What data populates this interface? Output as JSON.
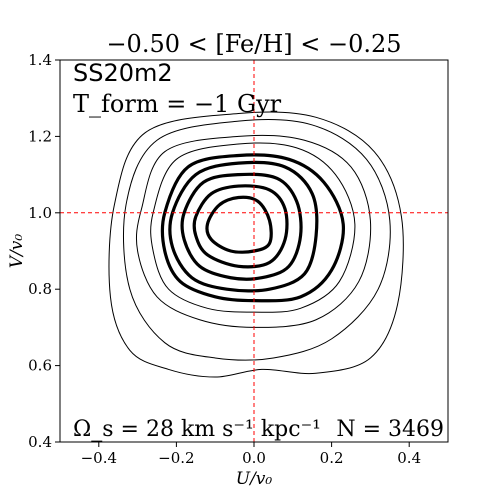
{
  "chart_data": {
    "type": "contour",
    "title": "−0.50 < [Fe/H] < −0.25",
    "xlabel": "U/v₀",
    "ylabel": "V/v₀",
    "xlim": [
      -0.5,
      0.5
    ],
    "ylim": [
      0.4,
      1.4
    ],
    "x_ticks": [
      -0.4,
      -0.2,
      0.0,
      0.2,
      0.4
    ],
    "x_tick_labels": [
      "−0.4",
      "−0.2",
      "0.0",
      "0.2",
      "0.4"
    ],
    "y_ticks": [
      0.4,
      0.6,
      0.8,
      1.0,
      1.2,
      1.4
    ],
    "y_tick_labels": [
      "0.4",
      "0.6",
      "0.8",
      "1.0",
      "1.2",
      "1.4"
    ],
    "grid": false,
    "reference_lines": [
      {
        "orientation": "vertical",
        "value": 0.0,
        "color": "#ff0000",
        "style": "dashed"
      },
      {
        "orientation": "horizontal",
        "value": 1.0,
        "color": "#ff0000",
        "style": "dashed"
      }
    ],
    "annotations": {
      "model": "SS20m2",
      "tform": "T_form = −1 Gyr",
      "omega": "Ω_s = 28 km s⁻¹ kpc⁻¹",
      "n": "N = 3469"
    },
    "contour_center": {
      "u": -0.04,
      "v": 0.98
    },
    "contours": [
      {
        "level": 1,
        "weight": "bold",
        "points": [
          [
            -0.12,
            0.97
          ],
          [
            -0.09,
            1.02
          ],
          [
            -0.04,
            1.04
          ],
          [
            0.01,
            1.03
          ],
          [
            0.04,
            0.98
          ],
          [
            0.04,
            0.92
          ],
          [
            0.0,
            0.9
          ],
          [
            -0.06,
            0.9
          ],
          [
            -0.11,
            0.93
          ]
        ]
      },
      {
        "level": 2,
        "weight": "bold",
        "points": [
          [
            -0.15,
            0.99
          ],
          [
            -0.11,
            1.05
          ],
          [
            -0.04,
            1.07
          ],
          [
            0.04,
            1.06
          ],
          [
            0.08,
            1.01
          ],
          [
            0.08,
            0.93
          ],
          [
            0.04,
            0.87
          ],
          [
            -0.04,
            0.86
          ],
          [
            -0.12,
            0.89
          ],
          [
            -0.15,
            0.94
          ]
        ]
      },
      {
        "level": 3,
        "weight": "bold",
        "points": [
          [
            -0.18,
            1.0
          ],
          [
            -0.13,
            1.08
          ],
          [
            -0.04,
            1.1
          ],
          [
            0.06,
            1.09
          ],
          [
            0.11,
            1.03
          ],
          [
            0.12,
            0.94
          ],
          [
            0.09,
            0.86
          ],
          [
            0.02,
            0.83
          ],
          [
            -0.06,
            0.83
          ],
          [
            -0.14,
            0.86
          ],
          [
            -0.18,
            0.93
          ]
        ]
      },
      {
        "level": 4,
        "weight": "bold",
        "points": [
          [
            -0.21,
            1.0
          ],
          [
            -0.15,
            1.1
          ],
          [
            -0.04,
            1.13
          ],
          [
            0.08,
            1.12
          ],
          [
            0.15,
            1.05
          ],
          [
            0.16,
            0.94
          ],
          [
            0.13,
            0.84
          ],
          [
            0.04,
            0.8
          ],
          [
            -0.07,
            0.8
          ],
          [
            -0.16,
            0.83
          ],
          [
            -0.21,
            0.91
          ]
        ]
      },
      {
        "level": 5,
        "weight": "bold",
        "points": [
          [
            -0.23,
            1.0
          ],
          [
            -0.17,
            1.12
          ],
          [
            -0.04,
            1.15
          ],
          [
            0.09,
            1.14
          ],
          [
            0.18,
            1.08
          ],
          [
            0.23,
            0.97
          ],
          [
            0.2,
            0.85
          ],
          [
            0.12,
            0.78
          ],
          [
            0.0,
            0.77
          ],
          [
            -0.1,
            0.78
          ],
          [
            -0.19,
            0.82
          ],
          [
            -0.23,
            0.9
          ]
        ]
      },
      {
        "level": 6,
        "weight": "thin",
        "points": [
          [
            -0.26,
            1.0
          ],
          [
            -0.2,
            1.14
          ],
          [
            -0.04,
            1.18
          ],
          [
            0.11,
            1.17
          ],
          [
            0.21,
            1.1
          ],
          [
            0.26,
            0.97
          ],
          [
            0.22,
            0.82
          ],
          [
            0.12,
            0.75
          ],
          [
            0.0,
            0.74
          ],
          [
            -0.12,
            0.75
          ],
          [
            -0.22,
            0.8
          ],
          [
            -0.26,
            0.9
          ]
        ]
      },
      {
        "level": 7,
        "weight": "thin",
        "points": [
          [
            -0.29,
            1.01
          ],
          [
            -0.23,
            1.16
          ],
          [
            -0.04,
            1.2
          ],
          [
            0.13,
            1.19
          ],
          [
            0.25,
            1.12
          ],
          [
            0.3,
            0.98
          ],
          [
            0.27,
            0.82
          ],
          [
            0.16,
            0.72
          ],
          [
            0.0,
            0.7
          ],
          [
            -0.14,
            0.72
          ],
          [
            -0.25,
            0.78
          ],
          [
            -0.3,
            0.9
          ]
        ]
      },
      {
        "level": 8,
        "weight": "thin",
        "points": [
          [
            -0.33,
            1.02
          ],
          [
            -0.25,
            1.19
          ],
          [
            -0.04,
            1.24
          ],
          [
            0.15,
            1.23
          ],
          [
            0.29,
            1.14
          ],
          [
            0.35,
            0.98
          ],
          [
            0.32,
            0.8
          ],
          [
            0.2,
            0.67
          ],
          [
            0.05,
            0.62
          ],
          [
            -0.1,
            0.62
          ],
          [
            -0.23,
            0.66
          ],
          [
            -0.32,
            0.8
          ]
        ]
      },
      {
        "level": 9,
        "weight": "thin",
        "points": [
          [
            -0.36,
            1.02
          ],
          [
            -0.28,
            1.21
          ],
          [
            -0.04,
            1.26
          ],
          [
            0.16,
            1.25
          ],
          [
            0.31,
            1.16
          ],
          [
            0.38,
            0.99
          ],
          [
            0.37,
            0.76
          ],
          [
            0.3,
            0.62
          ],
          [
            0.16,
            0.58
          ],
          [
            0.02,
            0.59
          ],
          [
            -0.1,
            0.57
          ],
          [
            -0.22,
            0.59
          ],
          [
            -0.32,
            0.64
          ],
          [
            -0.37,
            0.78
          ]
        ]
      }
    ]
  }
}
